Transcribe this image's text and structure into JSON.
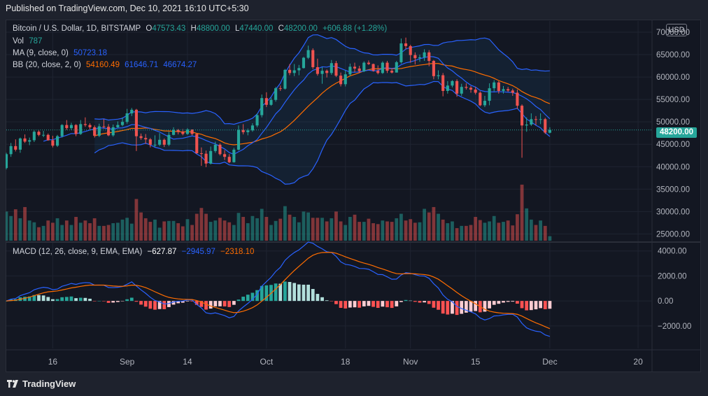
{
  "header": {
    "published": "Published on TradingView.com, Dec 10, 2021 16:10 UTC+5:30"
  },
  "brand": {
    "name": "TradingView"
  },
  "legend": {
    "symbol": "Bitcoin / U.S. Dollar, 1D, BITSTAMP",
    "o_label": "O",
    "o_value": "47573.43",
    "h_label": "H",
    "h_value": "48800.00",
    "l_label": "L",
    "l_value": "47440.00",
    "c_label": "C",
    "c_value": "48200.00",
    "change": "+606.88 (+1.28%)",
    "vol_label": "Vol",
    "vol_value": "787",
    "ma_label": "MA (9, close, 0)",
    "ma_value": "50723.18",
    "bb_label": "BB (20, close, 2, 0)",
    "bb_basis": "54160.49",
    "bb_upper": "61646.71",
    "bb_lower": "46674.27",
    "macd_label": "MACD (12, 26, close, 9, EMA, EMA)",
    "macd_hist": "−627.87",
    "macd_line": "−2945.97",
    "macd_signal": "−2318.10"
  },
  "currency_badge": "USD",
  "last_price_tag": "48200.00",
  "colors": {
    "up": "#26a69a",
    "down": "#ef5350",
    "ma": "#2962ff",
    "bb_basis": "#ff6d00",
    "bb_band": "#2962ff",
    "macd_line": "#2962ff",
    "macd_signal": "#ff6d00",
    "hist_up_strong": "#26a69a",
    "hist_up_weak": "#b2dfdb",
    "hist_down_strong": "#ff5252",
    "hist_down_weak": "#ffcdd2"
  },
  "chart_data": [
    {
      "type": "candlestick",
      "title": "Bitcoin / U.S. Dollar, 1D, BITSTAMP",
      "ylabel": "USD",
      "ylim": [
        23500,
        72500
      ],
      "y_ticks": [
        "70000.00",
        "65000.00",
        "60000.00",
        "55000.00",
        "50000.00",
        "45000.00",
        "40000.00",
        "35000.00",
        "30000.00",
        "25000.00"
      ],
      "x_ticks": [
        "16",
        "Sep",
        "14",
        "Oct",
        "18",
        "Nov",
        "15",
        "Dec",
        "20"
      ],
      "x_tick_dates": [
        "2021-08-16",
        "2021-09-01",
        "2021-09-14",
        "2021-10-01",
        "2021-10-18",
        "2021-11-01",
        "2021-11-15",
        "2021-12-01",
        "2021-12-20"
      ],
      "x_range": [
        "2021-08-06",
        "2021-12-23"
      ],
      "grid": true,
      "start_date": "2021-08-06",
      "close": [
        42800,
        44600,
        43800,
        46300,
        45600,
        45900,
        47800,
        47100,
        47100,
        45900,
        44700,
        46800,
        49300,
        48600,
        49300,
        47300,
        49500,
        49300,
        48800,
        46900,
        49000,
        48900,
        47000,
        48800,
        49300,
        50000,
        51900,
        52700,
        46800,
        46400,
        46100,
        44900,
        44900,
        46000,
        44900,
        47100,
        48200,
        47800,
        47300,
        48300,
        47300,
        43000,
        42900,
        40700,
        43500,
        44900,
        42800,
        42200,
        41000,
        43800,
        48200,
        47700,
        48100,
        49200,
        51500,
        55300,
        53800,
        54900,
        57500,
        57400,
        61600,
        60900,
        61500,
        62000,
        64300,
        66000,
        62200,
        60700,
        61400,
        60900,
        63100,
        60300,
        58400,
        60600,
        62300,
        61900,
        61300,
        63200,
        62900,
        61400,
        60900,
        63200,
        61400,
        61000,
        63300,
        67500,
        66900,
        64900,
        64200,
        64400,
        65500,
        63600,
        60200,
        60400,
        56900,
        58100,
        59100,
        56300,
        57800,
        57600,
        57200,
        56500,
        53700,
        54700,
        57500,
        58800,
        56900,
        57300,
        57000,
        56500,
        53600,
        49200,
        49400,
        50600,
        50500,
        50600,
        47600,
        48200
      ],
      "open": [
        39700,
        42800,
        44600,
        43800,
        46300,
        45600,
        45900,
        47800,
        47100,
        47100,
        45900,
        44700,
        46800,
        49300,
        48600,
        49300,
        47300,
        49500,
        49300,
        48800,
        46900,
        49000,
        48900,
        47000,
        48800,
        49300,
        50000,
        51900,
        52700,
        46800,
        46400,
        46100,
        44900,
        44900,
        46000,
        44900,
        47100,
        48200,
        47800,
        47300,
        48300,
        47300,
        43000,
        42900,
        40700,
        43500,
        44900,
        42800,
        42200,
        41000,
        43800,
        48200,
        47700,
        48100,
        49200,
        51500,
        55300,
        53800,
        54900,
        57500,
        57400,
        61600,
        60900,
        61500,
        62000,
        64300,
        66000,
        62200,
        60700,
        61400,
        60900,
        63100,
        60300,
        58400,
        60600,
        62300,
        61900,
        61300,
        63200,
        62900,
        61400,
        60900,
        63200,
        61400,
        61000,
        63300,
        67500,
        66900,
        64900,
        64200,
        64400,
        65500,
        63600,
        60200,
        60400,
        56900,
        58100,
        59100,
        56300,
        57800,
        57600,
        57200,
        56500,
        53700,
        54700,
        57500,
        58800,
        56900,
        57300,
        57000,
        56500,
        53600,
        49200,
        49400,
        50600,
        50500,
        50600,
        47573
      ],
      "high": [
        43100,
        45300,
        46100,
        46500,
        47200,
        46500,
        48100,
        48100,
        48000,
        47400,
        46900,
        47100,
        49500,
        50400,
        49800,
        49500,
        50400,
        51000,
        49700,
        49200,
        49600,
        50600,
        49500,
        49400,
        50100,
        51000,
        52900,
        53100,
        52900,
        47400,
        47300,
        46400,
        47000,
        47500,
        46300,
        47800,
        48800,
        48400,
        48400,
        48600,
        48300,
        47400,
        44300,
        43600,
        44500,
        45600,
        45200,
        43700,
        42800,
        44200,
        49200,
        49500,
        48500,
        49700,
        51900,
        56100,
        56600,
        55400,
        57800,
        58100,
        61800,
        62900,
        62900,
        62700,
        64500,
        67000,
        66400,
        64100,
        62200,
        61700,
        63800,
        63600,
        61000,
        61500,
        63000,
        63200,
        62500,
        63500,
        63700,
        63000,
        62600,
        63500,
        63600,
        62000,
        63600,
        68600,
        68800,
        67200,
        65500,
        65000,
        66200,
        66000,
        63800,
        61500,
        60900,
        59100,
        59300,
        59500,
        58500,
        58600,
        58000,
        57800,
        56800,
        55800,
        58600,
        59300,
        59100,
        58000,
        57800,
        57400,
        57200,
        53900,
        51000,
        51900,
        51300,
        51900,
        50900,
        48800
      ],
      "low": [
        39400,
        42200,
        43400,
        43100,
        45300,
        44800,
        45500,
        46800,
        46600,
        45800,
        44300,
        44400,
        46500,
        48200,
        48200,
        46800,
        47100,
        48900,
        48300,
        46500,
        46600,
        48500,
        46800,
        46700,
        48600,
        49000,
        49600,
        51300,
        43500,
        46000,
        45100,
        44300,
        44400,
        44600,
        44400,
        44600,
        47000,
        47200,
        47000,
        47100,
        47000,
        42900,
        40200,
        39900,
        40500,
        43100,
        42500,
        41500,
        40800,
        40900,
        43600,
        47200,
        47000,
        47800,
        48800,
        51000,
        53300,
        53600,
        54500,
        56900,
        57200,
        60400,
        60200,
        60400,
        61900,
        64000,
        61800,
        60300,
        58500,
        59900,
        60500,
        60000,
        57900,
        57900,
        60200,
        61100,
        60900,
        61100,
        62700,
        61200,
        60600,
        60700,
        60900,
        60800,
        61000,
        63000,
        66200,
        63200,
        62800,
        63400,
        63600,
        62400,
        59500,
        59500,
        55700,
        56300,
        57700,
        55600,
        55800,
        57200,
        56500,
        56100,
        53500,
        53300,
        53700,
        56800,
        56300,
        56300,
        56700,
        55800,
        52900,
        42000,
        47800,
        49100,
        49300,
        49500,
        47300,
        47440
      ],
      "volume": [
        30000,
        29000,
        30500,
        28500,
        31000,
        28000,
        27600,
        26500,
        26800,
        28000,
        27500,
        28500,
        27000,
        28000,
        27000,
        28800,
        27500,
        28000,
        27400,
        28500,
        26800,
        26800,
        27000,
        27400,
        27500,
        28200,
        28600,
        27300,
        32800,
        29800,
        28500,
        27700,
        28200,
        26400,
        27800,
        27900,
        27900,
        27400,
        26700,
        28300,
        27000,
        29500,
        30800,
        29500,
        27700,
        28000,
        28600,
        28000,
        27600,
        27000,
        29700,
        28800,
        27400,
        29000,
        28500,
        30600,
        28800,
        27000,
        27900,
        28400,
        31200,
        29300,
        28800,
        27600,
        30000,
        29800,
        28600,
        28600,
        28600,
        27800,
        28500,
        30000,
        27800,
        27000,
        28800,
        29300,
        27700,
        27700,
        28400,
        27400,
        27200,
        28000,
        27800,
        27700,
        28500,
        29500,
        28000,
        28300,
        27500,
        27600,
        30600,
        29800,
        31000,
        29500,
        28200,
        27400,
        27800,
        26300,
        26800,
        26800,
        27000,
        28800,
        28100,
        27500,
        27800,
        29000,
        27500,
        27700,
        28000,
        26900,
        29400,
        36000,
        30700,
        28200,
        27000,
        28000,
        26800,
        24500
      ]
    },
    {
      "type": "line",
      "title": "MA (9, close, 0)",
      "ylabel": "USD",
      "source": "derived from close"
    },
    {
      "type": "area",
      "title": "BB (20, close, 2, 0)",
      "ylabel": "USD",
      "source": "derived from close"
    },
    {
      "type": "bar",
      "title": "MACD (12, 26, close, 9, EMA, EMA)",
      "ylim": [
        -3800,
        4600
      ],
      "y_ticks": [
        "4000.00",
        "2000.00",
        "0.00",
        "−2000.00"
      ],
      "source": "derived from close"
    }
  ]
}
